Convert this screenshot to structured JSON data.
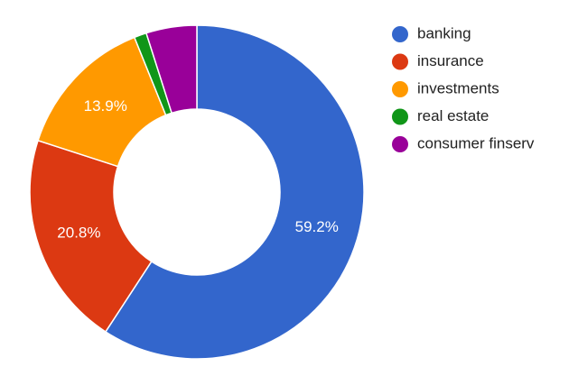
{
  "chart_data": {
    "type": "pie",
    "categories": [
      "banking",
      "insurance",
      "investments",
      "real estate",
      "consumer finserv"
    ],
    "values": [
      59.2,
      20.8,
      13.9,
      1.2,
      4.9
    ],
    "value_labels": [
      "59.2%",
      "20.8%",
      "13.9%",
      null,
      null
    ],
    "colors": [
      "#3366cc",
      "#dc3912",
      "#ff9900",
      "#109618",
      "#990099"
    ],
    "legend": "right"
  }
}
